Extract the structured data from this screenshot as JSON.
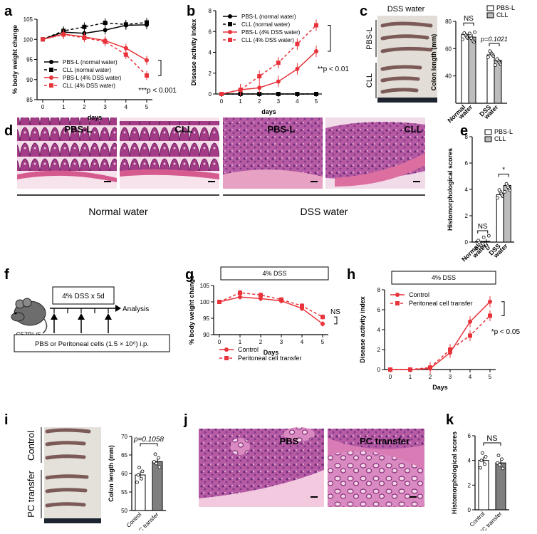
{
  "panels": {
    "a": "a",
    "b": "b",
    "c": "c",
    "d": "d",
    "e": "e",
    "f": "f",
    "g": "g",
    "h": "h",
    "i": "i",
    "j": "j",
    "k": "k"
  },
  "chart_data": [
    {
      "id": "a",
      "type": "line",
      "ylabel": "% body weight change",
      "xlabel": "days",
      "x": [
        0,
        1,
        2,
        3,
        4,
        5
      ],
      "ylim": [
        85,
        105
      ],
      "yticks": [
        85,
        90,
        95,
        100,
        105
      ],
      "series": [
        {
          "name": "PBS-L (normal water)",
          "values": [
            100,
            101.8,
            101.5,
            102.3,
            103.5,
            103.6
          ],
          "color": "#000000",
          "dash": false,
          "marker": "circle"
        },
        {
          "name": "CLL (normal water)",
          "values": [
            100,
            102.1,
            103.1,
            104.1,
            103.7,
            104.2
          ],
          "color": "#000000",
          "dash": true,
          "marker": "square"
        },
        {
          "name": "PBS-L (4% DSS water)",
          "values": [
            100,
            101.3,
            100.6,
            99.7,
            97.8,
            94.8
          ],
          "color": "#e8333a",
          "dash": false,
          "marker": "circle"
        },
        {
          "name": "CLL (4% DSS water)",
          "values": [
            100,
            101.2,
            100.4,
            99.4,
            96.2,
            91.0
          ],
          "color": "#e8333a",
          "dash": true,
          "marker": "square"
        }
      ],
      "annotation": "***p < 0.001"
    },
    {
      "id": "b",
      "type": "line",
      "ylabel": "Disease activity index",
      "xlabel": "days",
      "x": [
        0,
        1,
        2,
        3,
        4,
        5
      ],
      "ylim": [
        0,
        8
      ],
      "yticks": [
        0,
        2,
        4,
        6,
        8
      ],
      "series": [
        {
          "name": "PBS-L (normal water)",
          "values": [
            0,
            0,
            0,
            0,
            0,
            0
          ],
          "color": "#000000",
          "dash": false,
          "marker": "circle"
        },
        {
          "name": "CLL (normal water)",
          "values": [
            0,
            0,
            0,
            0,
            0,
            0
          ],
          "color": "#000000",
          "dash": true,
          "marker": "square"
        },
        {
          "name": "PBS-L (4% DSS water)",
          "values": [
            0,
            0.4,
            0.6,
            1.2,
            2.4,
            4.1
          ],
          "color": "#e8333a",
          "dash": false,
          "marker": "circle"
        },
        {
          "name": "CLL (4% DSS water)",
          "values": [
            0,
            0.4,
            1.7,
            3.0,
            4.8,
            6.6
          ],
          "color": "#e8333a",
          "dash": true,
          "marker": "square"
        }
      ],
      "annotation": "**p < 0.01"
    },
    {
      "id": "c",
      "type": "bar",
      "title": "DSS water",
      "ylabel": "Colon length (mm)",
      "categories": [
        "Normal water",
        "DSS water"
      ],
      "category_lines": [
        [
          "Normal",
          "water"
        ],
        [
          "DSS",
          "water"
        ]
      ],
      "ylim": [
        20,
        80
      ],
      "yticks": [
        40,
        60,
        80
      ],
      "image_labels": [
        "PBS-L",
        "CLL"
      ],
      "series": [
        {
          "name": "PBS-L",
          "values": [
            70.5,
            55.5
          ],
          "color": "#ffffff"
        },
        {
          "name": "CLL",
          "values": [
            68.5,
            51.5
          ],
          "color": "#bdbdbd"
        }
      ],
      "annotations": [
        "NS",
        "p=0.1021"
      ]
    },
    {
      "id": "d",
      "type": "table",
      "images": [
        "PBS-L",
        "CLL",
        "PBS-L",
        "CLL"
      ],
      "group_labels": [
        "Normal water",
        "DSS water"
      ]
    },
    {
      "id": "e",
      "type": "bar",
      "ylabel": "Histomorphological scores",
      "categories": [
        "Normal water",
        "DSS water"
      ],
      "category_lines": [
        [
          "Normal",
          "water"
        ],
        [
          "DSS",
          "water"
        ]
      ],
      "ylim": [
        0,
        8
      ],
      "yticks": [
        0,
        2,
        4,
        6,
        8
      ],
      "series": [
        {
          "name": "PBS-L",
          "values": [
            0,
            3.6
          ],
          "color": "#ffffff"
        },
        {
          "name": "CLL",
          "values": [
            0,
            4.3
          ],
          "color": "#bdbdbd"
        }
      ],
      "annotations": [
        "NS",
        "*"
      ]
    },
    {
      "id": "f",
      "type": "table",
      "mouse": "C57BL/6",
      "protocol": "4% DSS x 5d",
      "analysis": "Analysis",
      "injection": "PBS or Peritoneal cells (1.5 × 10⁶) i.p."
    },
    {
      "id": "g",
      "type": "line",
      "title": "4% DSS",
      "ylabel": "% body weight change",
      "xlabel": "Days",
      "x": [
        0,
        1,
        2,
        3,
        4,
        5
      ],
      "ylim": [
        90,
        105
      ],
      "yticks": [
        90,
        95,
        100,
        105
      ],
      "series": [
        {
          "name": "Control",
          "values": [
            100,
            101.5,
            101.0,
            100.3,
            98.0,
            93.3
          ],
          "color": "#e8333a",
          "dash": false,
          "marker": "circle"
        },
        {
          "name": "Peritoneal cell transfer",
          "values": [
            100,
            102.8,
            102.1,
            100.7,
            98.8,
            95.4
          ],
          "color": "#e8333a",
          "dash": true,
          "marker": "square"
        }
      ],
      "annotation": "NS"
    },
    {
      "id": "h",
      "type": "line",
      "title": "4% DSS",
      "ylabel": "Disease activity index",
      "xlabel": "Days",
      "x": [
        0,
        1,
        2,
        3,
        4,
        5
      ],
      "ylim": [
        0,
        8
      ],
      "yticks": [
        0,
        2,
        4,
        6,
        8
      ],
      "series": [
        {
          "name": "Control",
          "values": [
            0,
            0,
            0.1,
            1.7,
            4.8,
            6.8
          ],
          "color": "#e8333a",
          "dash": false,
          "marker": "circle"
        },
        {
          "name": "Peritoneal cell transfer",
          "values": [
            0,
            0,
            0.2,
            2.0,
            3.4,
            5.4
          ],
          "color": "#e8333a",
          "dash": true,
          "marker": "square"
        }
      ],
      "annotation": "*p < 0.05"
    },
    {
      "id": "i",
      "type": "bar",
      "ylabel": "Colon length (mm)",
      "categories": [
        "Control",
        "PC transfer"
      ],
      "ylim": [
        50,
        70
      ],
      "yticks": [
        50,
        55,
        60,
        65,
        70
      ],
      "image_labels": [
        "Control",
        "PC transfer"
      ],
      "values": [
        59.6,
        63.2
      ],
      "colors": [
        "#ffffff",
        "#7f7f7f"
      ],
      "annotation": "p=0.1058"
    },
    {
      "id": "j",
      "type": "table",
      "images": [
        "PBS",
        "PC transfer"
      ]
    },
    {
      "id": "k",
      "type": "bar",
      "ylabel": "Histomorphological scores",
      "categories": [
        "Control",
        "PC transfer"
      ],
      "ylim": [
        0,
        6
      ],
      "yticks": [
        0,
        2,
        4,
        6
      ],
      "values": [
        4.0,
        3.8
      ],
      "colors": [
        "#ffffff",
        "#7f7f7f"
      ],
      "annotation": "NS"
    }
  ]
}
